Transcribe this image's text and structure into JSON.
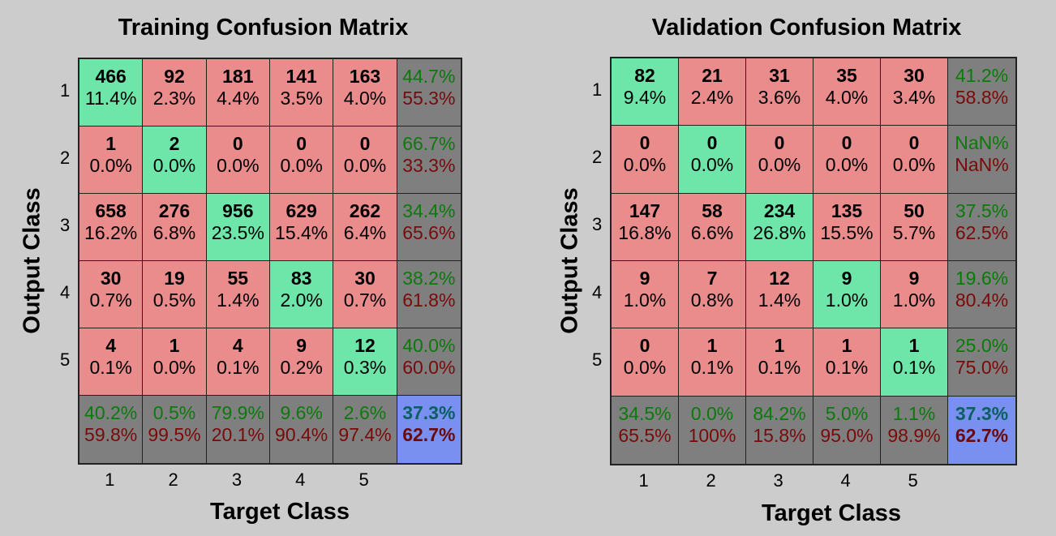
{
  "chart_data": [
    {
      "type": "heatmap",
      "title": "Training Confusion Matrix",
      "xlabel": "Target Class",
      "ylabel": "Output Class",
      "x_ticks": [
        "1",
        "2",
        "3",
        "4",
        "5"
      ],
      "y_ticks": [
        "1",
        "2",
        "3",
        "4",
        "5"
      ],
      "counts": [
        [
          466,
          92,
          181,
          141,
          163
        ],
        [
          1,
          2,
          0,
          0,
          0
        ],
        [
          658,
          276,
          956,
          629,
          262
        ],
        [
          30,
          19,
          55,
          83,
          30
        ],
        [
          4,
          1,
          4,
          9,
          12
        ]
      ],
      "percents": [
        [
          "11.4%",
          "2.3%",
          "4.4%",
          "3.5%",
          "4.0%"
        ],
        [
          "0.0%",
          "0.0%",
          "0.0%",
          "0.0%",
          "0.0%"
        ],
        [
          "16.2%",
          "6.8%",
          "23.5%",
          "15.4%",
          "6.4%"
        ],
        [
          "0.7%",
          "0.5%",
          "1.4%",
          "2.0%",
          "0.7%"
        ],
        [
          "0.1%",
          "0.0%",
          "0.1%",
          "0.2%",
          "0.3%"
        ]
      ],
      "row_summary": [
        [
          "44.7%",
          "55.3%"
        ],
        [
          "66.7%",
          "33.3%"
        ],
        [
          "34.4%",
          "65.6%"
        ],
        [
          "38.2%",
          "61.8%"
        ],
        [
          "40.0%",
          "60.0%"
        ]
      ],
      "col_summary": [
        [
          "40.2%",
          "59.8%"
        ],
        [
          "0.5%",
          "99.5%"
        ],
        [
          "79.9%",
          "20.1%"
        ],
        [
          "9.6%",
          "90.4%"
        ],
        [
          "2.6%",
          "97.4%"
        ]
      ],
      "total": [
        "37.3%",
        "62.7%"
      ]
    },
    {
      "type": "heatmap",
      "title": "Validation Confusion Matrix",
      "xlabel": "Target Class",
      "ylabel": "Output Class",
      "x_ticks": [
        "1",
        "2",
        "3",
        "4",
        "5"
      ],
      "y_ticks": [
        "1",
        "2",
        "3",
        "4",
        "5"
      ],
      "counts": [
        [
          82,
          21,
          31,
          35,
          30
        ],
        [
          0,
          0,
          0,
          0,
          0
        ],
        [
          147,
          58,
          234,
          135,
          50
        ],
        [
          9,
          7,
          12,
          9,
          9
        ],
        [
          0,
          1,
          1,
          1,
          1
        ]
      ],
      "percents": [
        [
          "9.4%",
          "2.4%",
          "3.6%",
          "4.0%",
          "3.4%"
        ],
        [
          "0.0%",
          "0.0%",
          "0.0%",
          "0.0%",
          "0.0%"
        ],
        [
          "16.8%",
          "6.6%",
          "26.8%",
          "15.5%",
          "5.7%"
        ],
        [
          "1.0%",
          "0.8%",
          "1.4%",
          "1.0%",
          "1.0%"
        ],
        [
          "0.0%",
          "0.1%",
          "0.1%",
          "0.1%",
          "0.1%"
        ]
      ],
      "row_summary": [
        [
          "41.2%",
          "58.8%"
        ],
        [
          "NaN%",
          "NaN%"
        ],
        [
          "37.5%",
          "62.5%"
        ],
        [
          "19.6%",
          "80.4%"
        ],
        [
          "25.0%",
          "75.0%"
        ]
      ],
      "col_summary": [
        [
          "34.5%",
          "65.5%"
        ],
        [
          "0.0%",
          "100%"
        ],
        [
          "84.2%",
          "15.8%"
        ],
        [
          "5.0%",
          "95.0%"
        ],
        [
          "1.1%",
          "98.9%"
        ]
      ],
      "total": [
        "37.3%",
        "62.7%"
      ]
    }
  ]
}
